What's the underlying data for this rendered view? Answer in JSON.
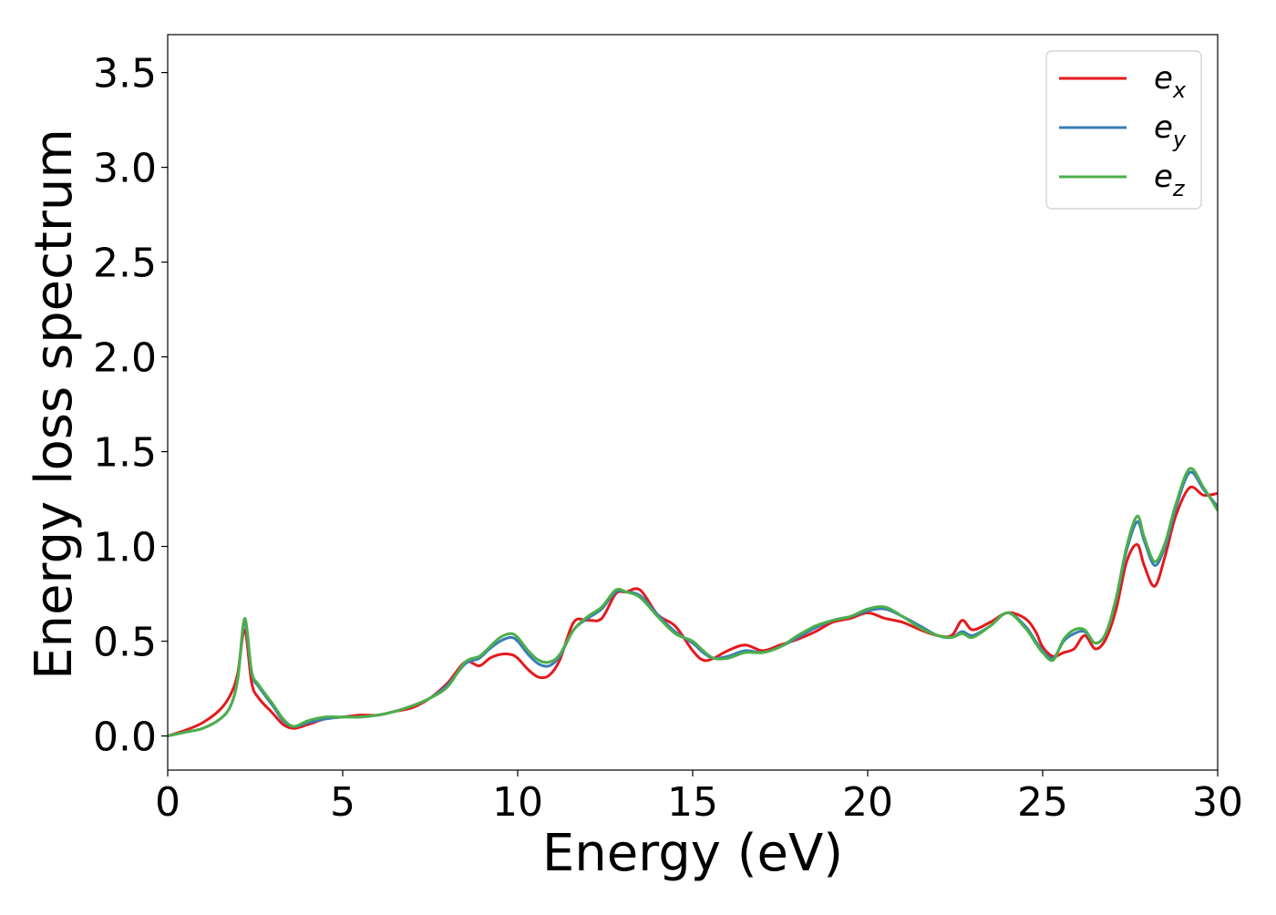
{
  "chart_data": {
    "type": "line",
    "title": "",
    "xlabel": "Energy (eV)",
    "ylabel": "Energy loss spectrum",
    "xlim": [
      0,
      30
    ],
    "ylim": [
      -0.18,
      3.7
    ],
    "xticks": [
      0,
      5,
      10,
      15,
      20,
      25,
      30
    ],
    "xtick_labels": [
      "0",
      "5",
      "10",
      "15",
      "20",
      "25",
      "30"
    ],
    "yticks": [
      0.0,
      0.5,
      1.0,
      1.5,
      2.0,
      2.5,
      3.0,
      3.5
    ],
    "ytick_labels": [
      "0.0",
      "0.5",
      "1.0",
      "1.5",
      "2.0",
      "2.5",
      "3.0",
      "3.5"
    ],
    "grid": false,
    "legend_position": "top-right",
    "series": [
      {
        "name": "ex",
        "legend_base": "e",
        "legend_sub": "x",
        "color": "#e41a1c",
        "x": [
          0,
          0.5,
          1.0,
          1.5,
          1.8,
          2.0,
          2.2,
          2.4,
          2.6,
          3.0,
          3.3,
          3.6,
          4.0,
          4.5,
          5.0,
          5.5,
          6.0,
          6.5,
          7.0,
          7.5,
          8.0,
          8.5,
          8.9,
          9.2,
          9.5,
          9.8,
          10.0,
          10.3,
          10.6,
          10.9,
          11.2,
          11.6,
          12.0,
          12.4,
          12.8,
          13.1,
          13.5,
          14.0,
          14.5,
          15.0,
          15.3,
          15.6,
          16.0,
          16.5,
          17.0,
          17.5,
          18.0,
          18.5,
          19.0,
          19.5,
          20.0,
          20.5,
          21.0,
          21.5,
          22.0,
          22.4,
          22.7,
          23.0,
          23.5,
          24.0,
          24.5,
          24.8,
          25.0,
          25.3,
          25.6,
          25.9,
          26.2,
          26.5,
          26.8,
          27.1,
          27.4,
          27.7,
          27.9,
          28.2,
          28.5,
          28.8,
          29.2,
          29.6,
          30.0
        ],
        "y": [
          0.0,
          0.03,
          0.07,
          0.14,
          0.22,
          0.33,
          0.56,
          0.28,
          0.2,
          0.12,
          0.06,
          0.04,
          0.06,
          0.09,
          0.1,
          0.11,
          0.11,
          0.13,
          0.15,
          0.2,
          0.28,
          0.39,
          0.37,
          0.41,
          0.43,
          0.43,
          0.41,
          0.35,
          0.31,
          0.32,
          0.4,
          0.6,
          0.61,
          0.62,
          0.75,
          0.76,
          0.77,
          0.64,
          0.58,
          0.45,
          0.4,
          0.41,
          0.45,
          0.48,
          0.45,
          0.48,
          0.51,
          0.55,
          0.6,
          0.62,
          0.65,
          0.62,
          0.6,
          0.56,
          0.53,
          0.53,
          0.61,
          0.56,
          0.6,
          0.65,
          0.62,
          0.55,
          0.47,
          0.42,
          0.44,
          0.46,
          0.53,
          0.46,
          0.51,
          0.67,
          0.92,
          1.01,
          0.9,
          0.79,
          0.95,
          1.16,
          1.31,
          1.27,
          1.28
        ]
      },
      {
        "name": "ey",
        "legend_base": "e",
        "legend_sub": "y",
        "color": "#377eb8",
        "x": [
          0,
          0.5,
          1.0,
          1.5,
          1.8,
          2.0,
          2.2,
          2.4,
          2.6,
          3.0,
          3.3,
          3.6,
          4.0,
          4.5,
          5.0,
          5.5,
          6.0,
          6.5,
          7.0,
          7.5,
          8.0,
          8.5,
          8.9,
          9.2,
          9.5,
          9.8,
          10.0,
          10.3,
          10.6,
          10.9,
          11.2,
          11.6,
          12.0,
          12.4,
          12.8,
          13.1,
          13.5,
          14.0,
          14.5,
          15.0,
          15.3,
          15.6,
          16.0,
          16.5,
          17.0,
          17.5,
          18.0,
          18.5,
          19.0,
          19.5,
          20.0,
          20.5,
          21.0,
          21.5,
          22.0,
          22.4,
          22.7,
          23.0,
          23.5,
          24.0,
          24.5,
          24.8,
          25.0,
          25.3,
          25.6,
          25.9,
          26.2,
          26.5,
          26.8,
          27.1,
          27.4,
          27.7,
          27.9,
          28.2,
          28.5,
          28.8,
          29.2,
          29.6,
          30.0
        ],
        "y": [
          0.0,
          0.02,
          0.04,
          0.09,
          0.16,
          0.3,
          0.6,
          0.33,
          0.26,
          0.16,
          0.08,
          0.05,
          0.07,
          0.09,
          0.1,
          0.1,
          0.11,
          0.13,
          0.16,
          0.2,
          0.27,
          0.38,
          0.41,
          0.46,
          0.5,
          0.52,
          0.5,
          0.43,
          0.38,
          0.37,
          0.42,
          0.56,
          0.62,
          0.67,
          0.76,
          0.76,
          0.74,
          0.64,
          0.55,
          0.49,
          0.44,
          0.41,
          0.42,
          0.45,
          0.44,
          0.47,
          0.52,
          0.57,
          0.61,
          0.63,
          0.66,
          0.67,
          0.63,
          0.58,
          0.53,
          0.52,
          0.55,
          0.53,
          0.58,
          0.65,
          0.58,
          0.5,
          0.45,
          0.41,
          0.5,
          0.54,
          0.55,
          0.49,
          0.54,
          0.72,
          0.98,
          1.13,
          1.03,
          0.9,
          1.0,
          1.2,
          1.39,
          1.3,
          1.21
        ]
      },
      {
        "name": "ez",
        "legend_base": "e",
        "legend_sub": "z",
        "color": "#4daf4a",
        "x": [
          0,
          0.5,
          1.0,
          1.5,
          1.8,
          2.0,
          2.2,
          2.4,
          2.6,
          3.0,
          3.3,
          3.6,
          4.0,
          4.5,
          5.0,
          5.5,
          6.0,
          6.5,
          7.0,
          7.5,
          8.0,
          8.5,
          8.9,
          9.2,
          9.5,
          9.8,
          10.0,
          10.3,
          10.6,
          10.9,
          11.2,
          11.6,
          12.0,
          12.4,
          12.8,
          13.1,
          13.5,
          14.0,
          14.5,
          15.0,
          15.3,
          15.6,
          16.0,
          16.5,
          17.0,
          17.5,
          18.0,
          18.5,
          19.0,
          19.5,
          20.0,
          20.5,
          21.0,
          21.5,
          22.0,
          22.4,
          22.7,
          23.0,
          23.5,
          24.0,
          24.5,
          24.8,
          25.0,
          25.3,
          25.6,
          25.9,
          26.2,
          26.5,
          26.8,
          27.1,
          27.4,
          27.7,
          27.9,
          28.2,
          28.5,
          28.8,
          29.2,
          29.6,
          30.0
        ],
        "y": [
          0.0,
          0.02,
          0.04,
          0.09,
          0.16,
          0.3,
          0.62,
          0.34,
          0.27,
          0.17,
          0.09,
          0.05,
          0.08,
          0.1,
          0.1,
          0.1,
          0.11,
          0.13,
          0.16,
          0.2,
          0.26,
          0.39,
          0.42,
          0.47,
          0.52,
          0.54,
          0.52,
          0.45,
          0.4,
          0.39,
          0.43,
          0.56,
          0.63,
          0.68,
          0.77,
          0.76,
          0.73,
          0.63,
          0.54,
          0.5,
          0.45,
          0.41,
          0.41,
          0.44,
          0.44,
          0.47,
          0.53,
          0.58,
          0.61,
          0.63,
          0.67,
          0.68,
          0.63,
          0.57,
          0.53,
          0.52,
          0.54,
          0.52,
          0.58,
          0.65,
          0.57,
          0.49,
          0.44,
          0.4,
          0.51,
          0.56,
          0.56,
          0.49,
          0.54,
          0.73,
          1.0,
          1.16,
          1.05,
          0.92,
          1.02,
          1.22,
          1.41,
          1.31,
          1.19
        ]
      }
    ]
  }
}
